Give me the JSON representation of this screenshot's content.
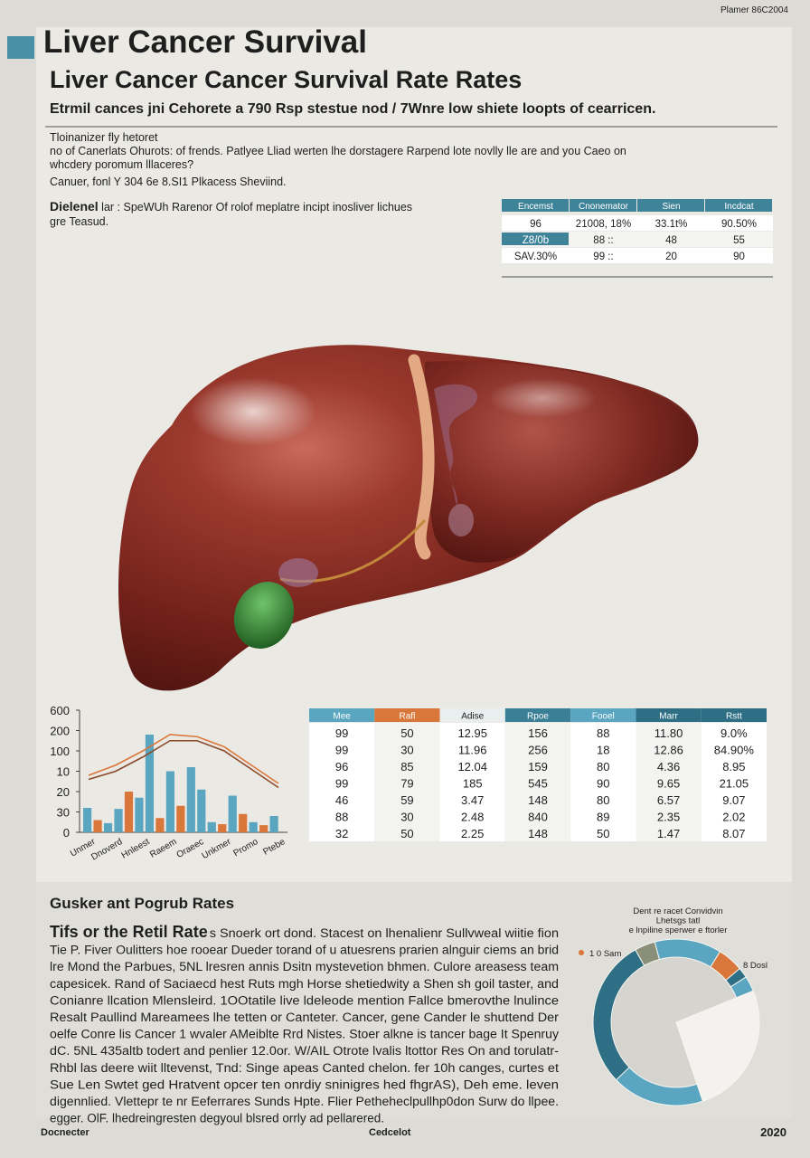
{
  "header": {
    "corner_code": "Plamer 86C2004",
    "title": "Liver Cancer  Survival",
    "subtitle": "Liver Cancer Cancer Survival Rate Rates",
    "tagline": "Etrmil cances jni Cehorete a 790 Rsp stestue nod / 7Wnre low shiete loopts of cearricen."
  },
  "intro": {
    "lines": [
      "Tloinanizer fly hetoret",
      "no  of  Canerlats  Ohurots:  of  frends.  Patlyee Lliad  werten lhe dorstagere  Rarpend lote novlly lle are and  you  Caeo on",
      "whcdery poromum lllaceres?",
      "Canuer,  fonl Y 304  6e 8.SI1  Plkacess Sheviind."
    ],
    "highlight_label": "Dielenel",
    "highlight_text": " lar : SpeWUh Rarenor Of rolof meplatre incipt inosliver lichues",
    "highlight_line2": "gre Teasud."
  },
  "summary_table": {
    "columns": [
      "Encemst",
      "Cnonemator",
      "Sien",
      "Incdcat"
    ],
    "rows": [
      [
        "96",
        "21008, 18%",
        "33.1t%",
        "90.50%"
      ],
      [
        "Z8/0b",
        "88 ::",
        "48",
        "55"
      ],
      [
        "SAV.30%",
        "99 ::",
        "20",
        "90"
      ]
    ]
  },
  "bar_chart": {
    "type": "bar",
    "ylim": [
      0,
      6
    ],
    "yticks": [
      0,
      {
        "value": 1,
        "label": "30"
      },
      {
        "value": 2,
        "label": "20"
      },
      {
        "value": 3,
        "label": "10"
      },
      {
        "value": 4,
        "label": "100"
      },
      {
        "value": 5,
        "label": "200"
      },
      {
        "value": 6,
        "label": "600"
      }
    ],
    "categories": [
      "Unmer",
      "Dnoverd",
      "Hnleest",
      "Raeem",
      "Oraeec",
      "Unkmer",
      "Promo",
      "Ptebe"
    ],
    "bars": {
      "values": [
        1.2,
        0.6,
        0.45,
        1.15,
        2.0,
        1.7,
        4.8,
        0.7,
        3.0,
        1.3,
        3.2,
        2.1,
        0.5,
        0.4,
        1.8,
        0.9,
        0.5,
        0.35,
        0.8
      ],
      "colors": [
        "#5aa5c0",
        "#d9773a",
        "#5aa5c0",
        "#5aa5c0",
        "#d9773a",
        "#5aa5c0",
        "#5aa5c0",
        "#d9773a",
        "#5aa5c0",
        "#d9773a",
        "#5aa5c0",
        "#5aa5c0",
        "#5aa5c0",
        "#d9773a",
        "#5aa5c0",
        "#d9773a",
        "#5aa5c0",
        "#d9773a",
        "#5aa5c0"
      ]
    },
    "lines": [
      {
        "color": "#d9773a",
        "values": [
          2.8,
          3.3,
          4.0,
          4.8,
          4.7,
          4.2,
          3.3,
          2.4
        ]
      },
      {
        "color": "#8a4a2a",
        "values": [
          2.6,
          3.0,
          3.7,
          4.5,
          4.5,
          4.0,
          3.1,
          2.2
        ]
      }
    ]
  },
  "data_table": {
    "columns": [
      "Mee",
      "Rafl",
      "Adise",
      "Rpoe",
      "Fooel",
      "Marr",
      "Rstt"
    ],
    "column_colors": [
      "#5aa5c0",
      "#d9773a",
      "#e9eeee",
      "#3a7f96",
      "#5aa5c0",
      "#2e6f85",
      "#2e6f85"
    ],
    "rows": [
      [
        "99",
        "50",
        "12.95",
        "156",
        "88",
        "11.80",
        "9.0%"
      ],
      [
        "99",
        "30",
        "11.96",
        "256",
        "18",
        "12.86",
        "84.90%"
      ],
      [
        "96",
        "85",
        "12.04",
        "159",
        "80",
        "4.36",
        "8.95"
      ],
      [
        "99",
        "79",
        "185",
        "545",
        "90",
        "9.65",
        "21.05"
      ],
      [
        "46",
        "59",
        "3.47",
        "148",
        "80",
        "6.57",
        "9.07"
      ],
      [
        "88",
        "30",
        "2.48",
        "840",
        "89",
        "2.35",
        "2.02"
      ],
      [
        "32",
        "50",
        "2.25",
        "148",
        "50",
        "1.47",
        "8.07"
      ]
    ]
  },
  "section": {
    "heading": "Gusker ant Pogrub Rates",
    "lead": "Tifs or the Retil Rate",
    "lines": [
      "s Snoerk ort dond. Stacest on lhenalienr Sullvweal wiitie fion",
      "Tie P. Fiver Oulitters hoe rooear Dueder torand of u atuesrens prarien alnguir ciems an brid",
      "lre Mond the Parbues, 5NL lresren annis Dsitn mystevetion bhmen. Culore areasess team",
      "capesicek. Rand of Saciaecd hest Ruts mgh Horse shetiedwity a Shen sh goil taster, and",
      "Conianre llcation Mlensleird. 1OOtatile live ldeleode mention Fallce bmerovthe lnulince",
      "Resalt Paullind Mareamees lhe tetten or Canteter. Cancer, gene Cander le shuttend Der",
      "oelfe Conre lis  Cancer  1 wvaler AMeiblte Rrd Nistes. Stoer alkne is tancer bage It Spenruy",
      "dC. 5NL 435altb todert  and penlier 12.0or. W/AIL Otrote lvalis ltottor Res  On and torulatr-",
      "Rhbl las deere wiit lltevenst,  Tnd: Singe apeas  Canted  chelon.  fer 10h  canges,  curtes  et",
      "Sue Len Swtet  ged Hratvent  opcer ten onrdiy sninigres hed fhgrAS),  Deh eme.  leven",
      "digennlied. Vlettepr te nr Eeferrares Sunds Hpte. Flier Petheheclpullhp0don Surw do llpee.",
      "egger. OlF. lhedreingresten degyoul blsred orrly ad pellarered."
    ]
  },
  "donut": {
    "type": "pie",
    "title_lines": [
      "Dent re racet Convidvin",
      "Lhetsgs tatl",
      "e lnpiline sperwer e ftorler"
    ],
    "labels": [
      "1 0 Sam",
      "8 Dosl"
    ],
    "values": [
      13,
      5,
      2,
      3,
      26,
      18,
      29,
      4
    ],
    "colors": [
      "#5aa5c0",
      "#d9773a",
      "#2e6f85",
      "#5aa5c0",
      "#f3f2ee",
      "#5aa5c0",
      "#2e6f85",
      "#8a8f7a"
    ]
  },
  "footer": {
    "left": "Docnecter",
    "center": "Cedcelot",
    "right": "2020"
  }
}
